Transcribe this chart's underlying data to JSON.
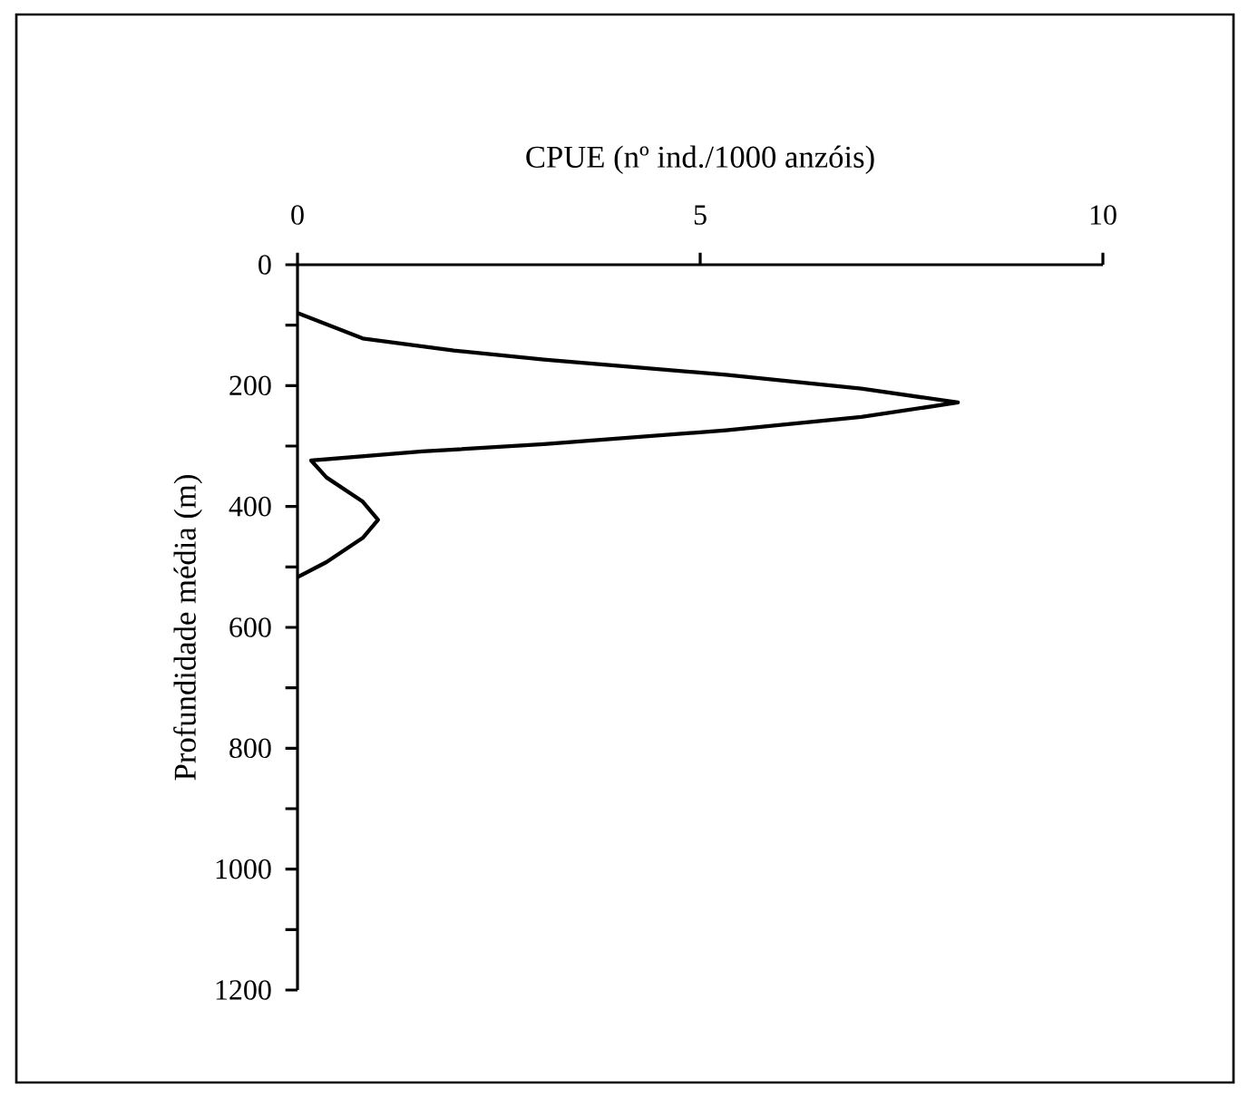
{
  "chart_data": {
    "type": "line",
    "xlabel": "CPUE (nº ind./1000 anzóis)",
    "ylabel": "Profundidade média (m)",
    "x": [
      0.0,
      0.81,
      1.94,
      3.06,
      5.32,
      7.0,
      8.2,
      7.0,
      5.32,
      3.06,
      1.55,
      0.17,
      0.36,
      0.81,
      1.0,
      0.81,
      0.36,
      0.0
    ],
    "series": [
      {
        "color": "#000000",
        "values": [
          80,
          122,
          142,
          157,
          182,
          205,
          228,
          252,
          274,
          297,
          309,
          324,
          352,
          392,
          422,
          452,
          492,
          517
        ]
      }
    ],
    "xlim": [
      0,
      10
    ],
    "xticks": [
      0,
      5,
      10
    ],
    "ylim": [
      1200,
      0
    ],
    "yticks": [
      0,
      {
        "value": 100,
        "label": null
      },
      200,
      {
        "value": 300,
        "label": null
      },
      400,
      {
        "value": 500,
        "label": null
      },
      600,
      {
        "value": 700,
        "label": null
      },
      800,
      {
        "value": 900,
        "label": null
      },
      1000,
      {
        "value": 1100,
        "label": null
      },
      1200
    ],
    "marker": "none",
    "line_style": "solid"
  }
}
